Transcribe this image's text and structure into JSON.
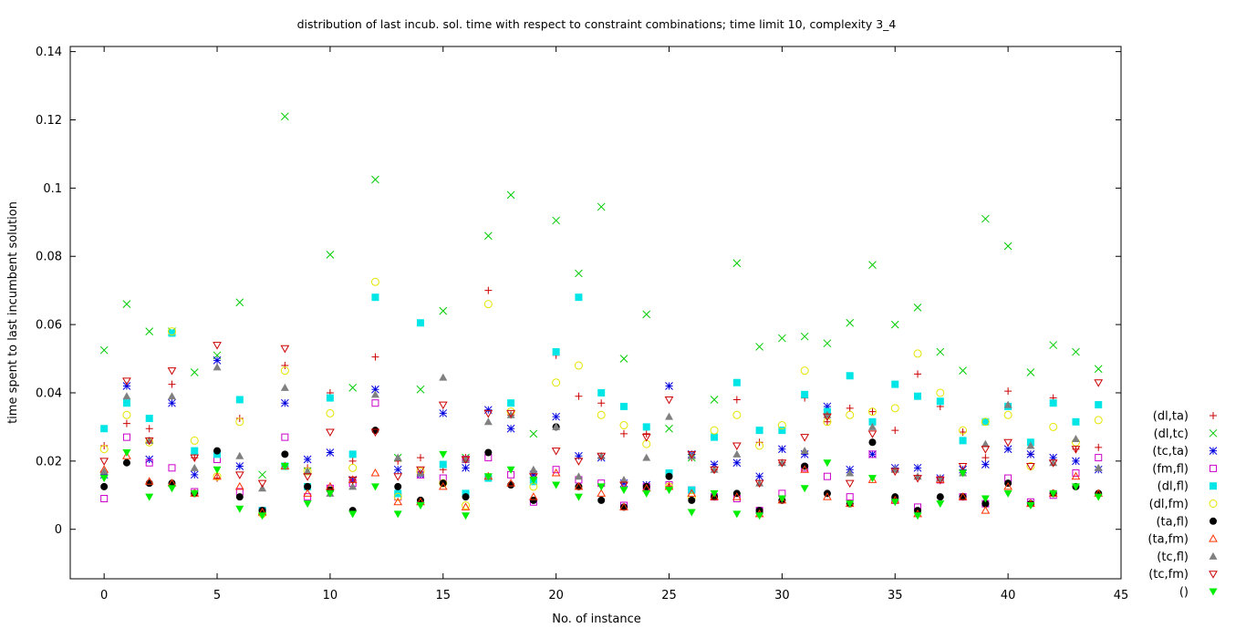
{
  "chart_data": {
    "type": "scatter",
    "title": "distribution of last incub. sol. time with respect to constraint combinations; time limit 10, complexity 3_4",
    "xlabel": "No. of instance",
    "ylabel": "time spent to last incumbent solution",
    "xlim": [
      -1.5,
      45
    ],
    "ylim": [
      -0.0145,
      0.1415
    ],
    "x_ticks": [
      0,
      5,
      10,
      15,
      20,
      25,
      30,
      35,
      40,
      45
    ],
    "x_tick_labels": [
      "0",
      "5",
      "10",
      "15",
      "20",
      "25",
      "30",
      "35",
      "40",
      "45"
    ],
    "y_ticks": [
      0,
      0.02,
      0.04,
      0.06,
      0.08,
      0.1,
      0.12,
      0.14
    ],
    "y_tick_labels": [
      "0",
      "0.02",
      "0.04",
      "0.06",
      "0.08",
      "0.1",
      "0.12",
      "0.14"
    ],
    "grid": false,
    "legend_position": "outside-right",
    "x": [
      0,
      1,
      2,
      3,
      4,
      5,
      6,
      7,
      8,
      9,
      10,
      11,
      12,
      13,
      14,
      15,
      16,
      17,
      18,
      19,
      20,
      21,
      22,
      23,
      24,
      25,
      26,
      27,
      28,
      29,
      30,
      31,
      32,
      33,
      34,
      35,
      36,
      37,
      38,
      39,
      40,
      41,
      42,
      43,
      44
    ],
    "series": [
      {
        "name": "(dl,ta)",
        "marker": "plus",
        "color": "#cc0000",
        "values": [
          0.0245,
          0.031,
          0.0295,
          0.0425,
          0.021,
          0.015,
          0.0325,
          0.005,
          0.048,
          0.018,
          0.04,
          0.02,
          0.0505,
          0.02,
          0.021,
          0.0175,
          0.021,
          0.07,
          0.0335,
          0.014,
          0.051,
          0.039,
          0.037,
          0.028,
          0.028,
          0.0125,
          0.021,
          0.0175,
          0.038,
          0.0255,
          0.0195,
          0.0385,
          0.0315,
          0.0355,
          0.0345,
          0.029,
          0.0455,
          0.036,
          0.0285,
          0.021,
          0.0405,
          0.022,
          0.0385,
          0.0235,
          0.024
        ]
      },
      {
        "name": "(dl,tc)",
        "marker": "cross",
        "color": "#00cc00",
        "values": [
          0.0525,
          0.066,
          0.058,
          0.058,
          0.046,
          0.051,
          0.0665,
          0.016,
          0.121,
          0.017,
          0.0805,
          0.0415,
          0.1025,
          0.021,
          0.041,
          0.064,
          0.021,
          0.086,
          0.098,
          0.028,
          0.0905,
          0.075,
          0.0945,
          0.05,
          0.063,
          0.0295,
          0.021,
          0.038,
          0.078,
          0.0535,
          0.056,
          0.0565,
          0.0545,
          0.0605,
          0.0775,
          0.06,
          0.065,
          0.052,
          0.0465,
          0.091,
          0.083,
          0.046,
          0.054,
          0.052,
          0.047
        ]
      },
      {
        "name": "(tc,ta)",
        "marker": "star",
        "color": "#0000e0",
        "values": [
          0.016,
          0.042,
          0.0205,
          0.037,
          0.016,
          0.0495,
          0.0185,
          0.005,
          0.037,
          0.0205,
          0.0225,
          0.0145,
          0.041,
          0.0175,
          0.016,
          0.034,
          0.018,
          0.035,
          0.0295,
          0.016,
          0.033,
          0.0215,
          0.021,
          0.0135,
          0.013,
          0.042,
          0.022,
          0.019,
          0.0195,
          0.0155,
          0.0235,
          0.022,
          0.036,
          0.0175,
          0.022,
          0.018,
          0.018,
          0.015,
          0.0175,
          0.019,
          0.0235,
          0.022,
          0.021,
          0.02,
          0.0175
        ]
      },
      {
        "name": "(fm,fl)",
        "marker": "square-open",
        "color": "#cc00cc",
        "values": [
          0.009,
          0.027,
          0.0195,
          0.018,
          0.011,
          0.0205,
          0.011,
          0.0055,
          0.027,
          0.0095,
          0.012,
          0.0135,
          0.037,
          0.0095,
          0.016,
          0.015,
          0.0205,
          0.021,
          0.016,
          0.008,
          0.0175,
          0.0145,
          0.0135,
          0.007,
          0.0125,
          0.013,
          0.0115,
          0.0095,
          0.009,
          0.0055,
          0.0105,
          0.018,
          0.0155,
          0.0095,
          0.022,
          0.0085,
          0.0065,
          0.0145,
          0.0095,
          0.0075,
          0.015,
          0.008,
          0.01,
          0.0165,
          0.021
        ]
      },
      {
        "name": "(dl,fl)",
        "marker": "square-filled",
        "color": "#00e5e5",
        "values": [
          0.0295,
          0.037,
          0.0325,
          0.0575,
          0.023,
          0.022,
          0.038,
          0.0055,
          0.0185,
          0.0125,
          0.0385,
          0.022,
          0.068,
          0.0105,
          0.0605,
          0.019,
          0.0105,
          0.015,
          0.037,
          0.014,
          0.052,
          0.068,
          0.04,
          0.036,
          0.03,
          0.0165,
          0.0115,
          0.027,
          0.043,
          0.029,
          0.029,
          0.0395,
          0.0345,
          0.045,
          0.0315,
          0.0425,
          0.039,
          0.0375,
          0.026,
          0.0315,
          0.036,
          0.0255,
          0.037,
          0.0315,
          0.0365
        ]
      },
      {
        "name": "(dl,fm)",
        "marker": "circle-open",
        "color": "#e5e500",
        "values": [
          0.0235,
          0.0335,
          0.0255,
          0.058,
          0.026,
          0.0155,
          0.0315,
          0.0045,
          0.0465,
          0.017,
          0.034,
          0.018,
          0.0725,
          0.0095,
          0.017,
          0.0135,
          0.007,
          0.066,
          0.0345,
          0.0125,
          0.043,
          0.048,
          0.0335,
          0.0305,
          0.025,
          0.0125,
          0.0095,
          0.029,
          0.0335,
          0.0245,
          0.0305,
          0.0465,
          0.0315,
          0.0335,
          0.0345,
          0.0355,
          0.0515,
          0.04,
          0.029,
          0.0315,
          0.0335,
          0.0185,
          0.03,
          0.0255,
          0.032
        ]
      },
      {
        "name": "(ta,fl)",
        "marker": "circle-filled",
        "color": "#000000",
        "values": [
          0.0125,
          0.0195,
          0.0135,
          0.0135,
          0.0105,
          0.023,
          0.0095,
          0.0055,
          0.022,
          0.0125,
          0.0115,
          0.0055,
          0.029,
          0.0125,
          0.0085,
          0.0135,
          0.0095,
          0.0225,
          0.013,
          0.0085,
          0.03,
          0.0125,
          0.0085,
          0.0065,
          0.0125,
          0.0155,
          0.0085,
          0.0095,
          0.0105,
          0.0055,
          0.0085,
          0.0185,
          0.0105,
          0.0075,
          0.0255,
          0.0095,
          0.0055,
          0.0095,
          0.0095,
          0.0075,
          0.0135,
          0.0075,
          0.0105,
          0.0125,
          0.0105
        ]
      },
      {
        "name": "(ta,fm)",
        "marker": "triangle-up-open",
        "color": "#ff3300",
        "values": [
          0.0175,
          0.0215,
          0.014,
          0.0135,
          0.0105,
          0.0155,
          0.0125,
          0.005,
          0.0185,
          0.0105,
          0.0125,
          0.0145,
          0.0165,
          0.008,
          0.008,
          0.0125,
          0.0065,
          0.0155,
          0.0135,
          0.0095,
          0.0165,
          0.0125,
          0.0105,
          0.0065,
          0.012,
          0.0125,
          0.0105,
          0.0095,
          0.0095,
          0.0045,
          0.0085,
          0.0175,
          0.0095,
          0.0075,
          0.0145,
          0.0085,
          0.0045,
          0.0145,
          0.0095,
          0.0055,
          0.0125,
          0.0075,
          0.0105,
          0.0155,
          0.0105
        ]
      },
      {
        "name": "(tc,fl)",
        "marker": "triangle-up-filled",
        "color": "#808080",
        "values": [
          0.017,
          0.039,
          0.026,
          0.039,
          0.018,
          0.0475,
          0.0215,
          0.012,
          0.0415,
          0.017,
          0.0105,
          0.0125,
          0.0395,
          0.021,
          0.0165,
          0.0445,
          0.0205,
          0.0315,
          0.0335,
          0.0175,
          0.03,
          0.0155,
          0.0215,
          0.0145,
          0.021,
          0.033,
          0.0215,
          0.0175,
          0.022,
          0.0135,
          0.0195,
          0.023,
          0.0335,
          0.0165,
          0.03,
          0.0175,
          0.0155,
          0.015,
          0.0165,
          0.025,
          0.0365,
          0.0245,
          0.0195,
          0.0265,
          0.018
        ]
      },
      {
        "name": "(tc,fm)",
        "marker": "triangle-down-open",
        "color": "#cc0000",
        "values": [
          0.02,
          0.0435,
          0.026,
          0.0465,
          0.021,
          0.054,
          0.016,
          0.0135,
          0.053,
          0.0155,
          0.0285,
          0.0145,
          0.0285,
          0.0155,
          0.0175,
          0.0365,
          0.0205,
          0.034,
          0.034,
          0.0155,
          0.023,
          0.02,
          0.0215,
          0.013,
          0.027,
          0.038,
          0.022,
          0.0175,
          0.0245,
          0.0135,
          0.0195,
          0.027,
          0.033,
          0.0135,
          0.028,
          0.017,
          0.015,
          0.0145,
          0.0185,
          0.0235,
          0.0255,
          0.0185,
          0.0195,
          0.0235,
          0.043
        ]
      },
      {
        "name": "()",
        "marker": "triangle-down-filled",
        "color": "#00ee00",
        "values": [
          0.015,
          0.0225,
          0.0095,
          0.012,
          0.0105,
          0.0175,
          0.006,
          0.004,
          0.0185,
          0.0075,
          0.0105,
          0.0045,
          0.0125,
          0.0045,
          0.007,
          0.022,
          0.004,
          0.0155,
          0.0175,
          0.0145,
          0.013,
          0.0095,
          0.0125,
          0.0115,
          0.0105,
          0.0115,
          0.005,
          0.0105,
          0.0045,
          0.004,
          0.009,
          0.012,
          0.0195,
          0.0075,
          0.015,
          0.008,
          0.004,
          0.0075,
          0.0165,
          0.009,
          0.0105,
          0.007,
          0.0105,
          0.0125,
          0.0095
        ]
      }
    ]
  }
}
